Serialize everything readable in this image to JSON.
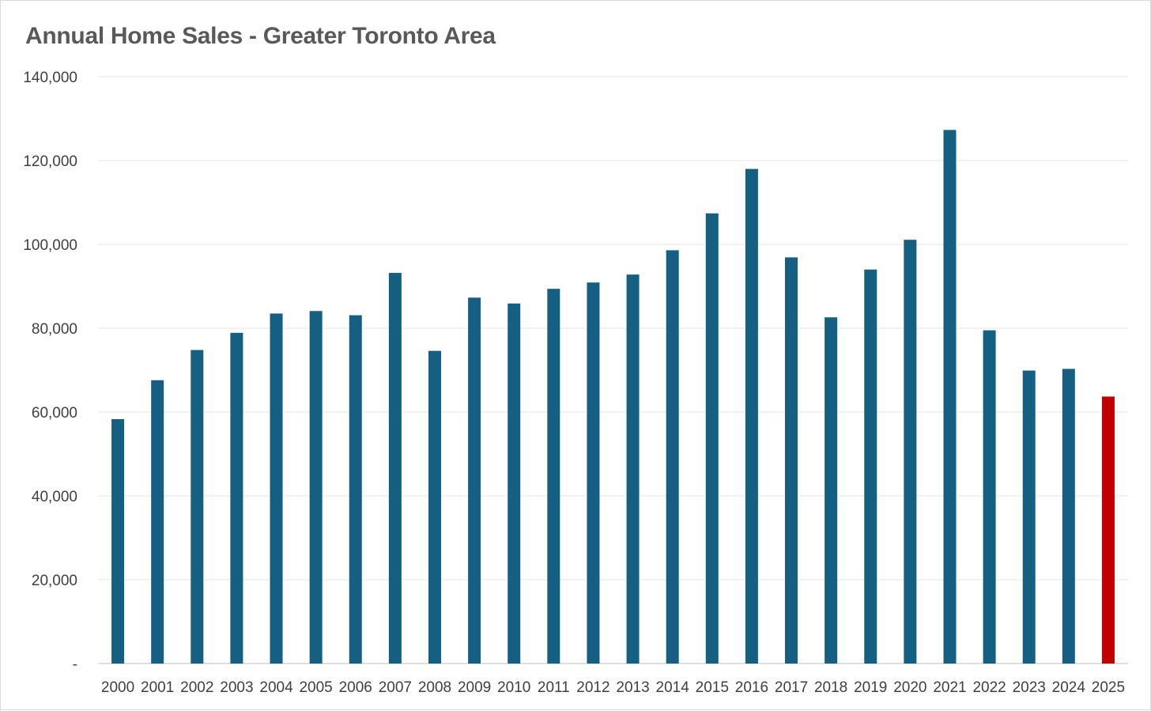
{
  "chart_data": {
    "type": "bar",
    "title": "Annual Home Sales - Greater Toronto Area",
    "xlabel": "",
    "ylabel": "",
    "categories": [
      "2000",
      "2001",
      "2002",
      "2003",
      "2004",
      "2005",
      "2006",
      "2007",
      "2008",
      "2009",
      "2010",
      "2011",
      "2012",
      "2013",
      "2014",
      "2015",
      "2016",
      "2017",
      "2018",
      "2019",
      "2020",
      "2021",
      "2022",
      "2023",
      "2024",
      "2025"
    ],
    "values": [
      58300,
      67600,
      74800,
      78900,
      83500,
      84100,
      83100,
      93200,
      74600,
      87300,
      85900,
      89400,
      90900,
      92800,
      98600,
      107400,
      118000,
      96900,
      82600,
      94000,
      101100,
      127300,
      79500,
      69900,
      70300,
      63700
    ],
    "ylim": [
      0,
      140000
    ],
    "yticks": [
      0,
      20000,
      40000,
      60000,
      80000,
      100000,
      120000,
      140000
    ],
    "ytick_labels": [
      "-",
      "20,000",
      "40,000",
      "60,000",
      "80,000",
      "100,000",
      "120,000",
      "140,000"
    ],
    "grid": true,
    "legend": "none",
    "colors": {
      "bar": "#156082",
      "highlight": "#c00000",
      "gridline": "#e6e6e6",
      "axis": "#bfbfbf"
    },
    "highlight_index": 25
  }
}
